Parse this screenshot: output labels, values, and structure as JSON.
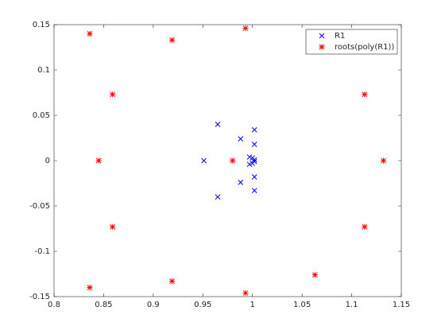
{
  "chart_data": {
    "type": "scatter",
    "xlim": [
      0.8,
      1.15
    ],
    "xticks": [
      0.8,
      0.85,
      0.9,
      0.95,
      1,
      1.05,
      1.1,
      1.15
    ],
    "ylim": [
      -0.15,
      0.15
    ],
    "yticks": [
      -0.15,
      -0.1,
      -0.05,
      0,
      0.05,
      0.1,
      0.15
    ],
    "legend": "northeast",
    "series": [
      {
        "name": "R1",
        "color": "#0000ff",
        "marker": "x",
        "x": [
          0.965,
          0.965,
          0.951,
          0.988,
          0.988,
          1.002,
          1.002,
          1.002,
          1.002,
          0.997,
          0.997,
          1.0,
          1.0,
          1.002,
          1.002
        ],
        "values": [
          0.04,
          -0.04,
          0,
          0.024,
          -0.024,
          0.034,
          0.018,
          -0.018,
          -0.033,
          0.004,
          -0.004,
          0.003,
          -0.003,
          0.001,
          -0.001
        ]
      },
      {
        "name": "roots(poly(R1))",
        "color": "#ff0000",
        "marker": "*",
        "x": [
          0.836,
          0.836,
          0.919,
          0.919,
          0.993,
          0.993,
          0.859,
          0.859,
          0.845,
          0.98,
          1.113,
          1.113,
          1.132,
          1.063
        ],
        "values": [
          0.14,
          -0.14,
          0.133,
          -0.133,
          0.146,
          -0.146,
          0.073,
          -0.073,
          0,
          0,
          0.073,
          -0.073,
          0,
          -0.126
        ]
      }
    ]
  }
}
